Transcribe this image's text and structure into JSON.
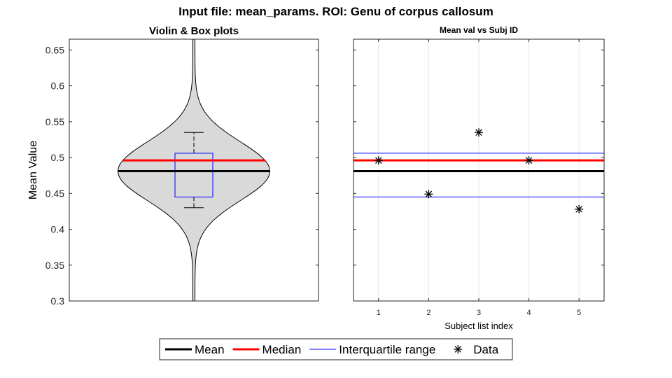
{
  "figure": {
    "suptitle": "Input file: mean_params.  ROI: Genu of corpus callosum"
  },
  "legend": {
    "position": "bottom-center",
    "items": [
      {
        "label": "Mean",
        "color": "#000000",
        "kind": "line-thick"
      },
      {
        "label": "Median",
        "color": "#ff0000",
        "kind": "line-thick"
      },
      {
        "label": "Interquartile range",
        "color": "#0000ff",
        "kind": "line-thin"
      },
      {
        "label": "Data",
        "color": "#000000",
        "kind": "asterisk"
      }
    ]
  },
  "chart_data": [
    {
      "type": "violin",
      "title": "Violin & Box plots",
      "xlabel": "",
      "ylabel": "Mean Value",
      "ylim": [
        0.3,
        0.665
      ],
      "yticks": [
        0.3,
        0.35,
        0.4,
        0.45,
        0.5,
        0.55,
        0.6,
        0.65
      ],
      "ytick_labels": [
        "0.3",
        "0.35",
        "0.4",
        "0.45",
        "0.5",
        "0.55",
        "0.6",
        "0.65"
      ],
      "mean": 0.481,
      "median": 0.496,
      "q1": 0.445,
      "q3": 0.506,
      "whisker_low": 0.43,
      "whisker_high": 0.535,
      "violin_min": 0.3,
      "violin_max": 0.665,
      "violin_fill": "#d9d9d9",
      "box_color": "#0000ff",
      "mean_color": "#000000",
      "median_color": "#ff0000",
      "grid": false
    },
    {
      "type": "scatter",
      "title": "Mean val vs Subj ID",
      "xlabel": "Subject list index",
      "ylabel": "",
      "xlim": [
        0.5,
        5.5
      ],
      "ylim": [
        0.3,
        0.665
      ],
      "xticks": [
        1,
        2,
        3,
        4,
        5
      ],
      "xtick_labels": [
        "1",
        "2",
        "3",
        "4",
        "5"
      ],
      "x": [
        1,
        2,
        3,
        4,
        5
      ],
      "y": [
        0.496,
        0.449,
        0.535,
        0.496,
        0.428
      ],
      "hlines": {
        "mean": 0.481,
        "median": 0.496,
        "q1": 0.445,
        "q3": 0.506
      },
      "grid": "x"
    }
  ]
}
